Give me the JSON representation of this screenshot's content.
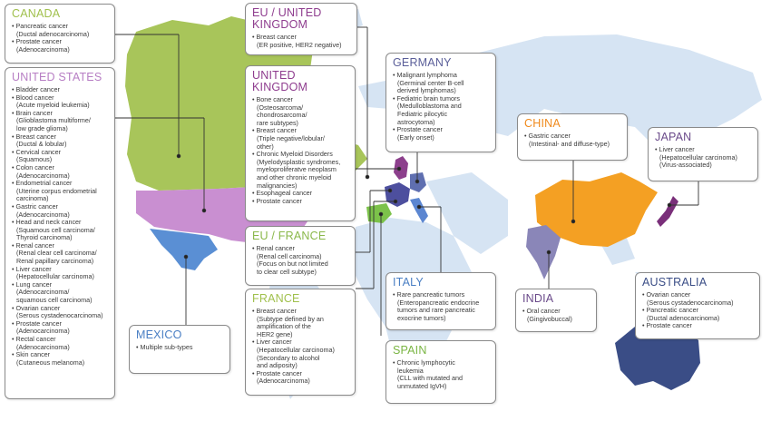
{
  "colors": {
    "ocean_land": "#d6e4f3",
    "canada": "#a8c55a",
    "usa": "#c98fd1",
    "mexico": "#5a8fd4",
    "uk": "#8c3f8c",
    "france": "#4d4f9e",
    "spain": "#7cc24a",
    "germany": "#5f6fb0",
    "italy": "#5b86d1",
    "china": "#f4a023",
    "india": "#8a86b8",
    "japan": "#7a2f7a",
    "australia": "#3a4d86",
    "title_canada": "#a0c04c",
    "title_usa": "#b77ec4",
    "title_uk": "#8e3c8e",
    "title_eu_france": "#8ab84a",
    "title_france": "#a0c04c",
    "title_germany": "#5a5e99",
    "title_mexico": "#4a7fc4",
    "title_italy": "#4a7fc4",
    "title_spain": "#7ab543",
    "title_china": "#f08a1c",
    "title_japan": "#6a4a8a",
    "title_india": "#6a4a8a",
    "title_australia": "#3a4d86"
  },
  "boxes": {
    "canada": {
      "title": "CANADA",
      "items": [
        {
          "title": "Pancreatic cancer",
          "sub": [
            "(Ductal adenocarcinoma)"
          ]
        },
        {
          "title": "Prostate cancer",
          "sub": [
            "(Adenocarcinoma)"
          ]
        }
      ]
    },
    "usa": {
      "title": "UNITED STATES",
      "items": [
        {
          "title": "Bladder cancer",
          "sub": []
        },
        {
          "title": "Blood cancer",
          "sub": [
            "(Acute myeloid leukemia)"
          ]
        },
        {
          "title": "Brain cancer",
          "sub": [
            "(Glioblastoma multiforme/",
            "low grade glioma)"
          ]
        },
        {
          "title": "Breast cancer",
          "sub": [
            "(Ductal & lobular)"
          ]
        },
        {
          "title": "Cervical cancer",
          "sub": [
            "(Squamous)"
          ]
        },
        {
          "title": "Colon cancer",
          "sub": [
            "(Adenocarcinoma)"
          ]
        },
        {
          "title": "Endometrial cancer",
          "sub": [
            "(Uterine corpus endometrial",
            "carcinoma)"
          ]
        },
        {
          "title": "Gastric cancer",
          "sub": [
            "(Adenocarcinoma)"
          ]
        },
        {
          "title": "Head and neck cancer",
          "sub": [
            "(Squamous cell carcinoma/",
            "Thyroid carcinoma)"
          ]
        },
        {
          "title": "Renal cancer",
          "sub": [
            "(Renal clear cell carcinoma/",
            "Renal papillary carcinoma)"
          ]
        },
        {
          "title": "Liver cancer",
          "sub": [
            "(Hepatocellular carcinoma)"
          ]
        },
        {
          "title": "Lung cancer",
          "sub": [
            "(Adenocarcinoma/",
            "squamous cell carcinoma)"
          ]
        },
        {
          "title": "Ovarian cancer",
          "sub": [
            "(Serous cystadenocarcinoma)"
          ]
        },
        {
          "title": "Prostate cancer",
          "sub": [
            "(Adenocarcinoma)"
          ]
        },
        {
          "title": "Rectal cancer",
          "sub": [
            "(Adenocarcinoma)"
          ]
        },
        {
          "title": "Skin cancer",
          "sub": [
            "(Cutaneous melanoma)"
          ]
        }
      ]
    },
    "mexico": {
      "title": "MEXICO",
      "items": [
        {
          "title": "Multiple sub-types",
          "sub": []
        }
      ]
    },
    "eu_uk": {
      "title": "EU / UNITED KINGDOM",
      "items": [
        {
          "title": "Breast cancer",
          "sub": [
            "(ER positive, HER2 negative)"
          ]
        }
      ]
    },
    "uk": {
      "title": "UNITED KINGDOM",
      "items": [
        {
          "title": "Bone cancer",
          "sub": [
            "(Osteosarcoma/",
            "chondrosarcoma/",
            "rare subtypes)"
          ]
        },
        {
          "title": "Breast cancer",
          "sub": [
            "(Triple negative/lobular/",
            "other)"
          ]
        },
        {
          "title": "Chronic Myeloid Disorders",
          "sub": [
            "(Myelodysplastic syndromes,",
            "myeloproliferatve neoplasm",
            "and other chronic myeloid",
            "malignancies)"
          ]
        },
        {
          "title": "Esophageal cancer",
          "sub": []
        },
        {
          "title": "Prostate cancer",
          "sub": []
        }
      ]
    },
    "eu_france": {
      "title": "EU / FRANCE",
      "items": [
        {
          "title": "Renal cancer",
          "sub": [
            "(Renal cell carcinoma)",
            "(Focus on but not limited",
            "to clear cell subtype)"
          ]
        }
      ]
    },
    "france": {
      "title": "FRANCE",
      "items": [
        {
          "title": "Breast cancer",
          "sub": [
            "(Subtype defined by an",
            "amplification of the",
            "HER2 gene)"
          ]
        },
        {
          "title": "Liver cancer",
          "sub": [
            "(Hepatocellular carcinoma)",
            "(Secondary to alcohol",
            "and adiposity)"
          ]
        },
        {
          "title": "Prostate cancer",
          "sub": [
            "(Adenocarcinoma)"
          ]
        }
      ]
    },
    "germany": {
      "title": "GERMANY",
      "items": [
        {
          "title": "Malignant lymphoma",
          "sub": [
            "(Germinal center B-cell",
            "derived lymphomas)"
          ]
        },
        {
          "title": "Fediatric brain tumors",
          "sub": [
            "(Medulloblastoma and",
            "Fediatric pilocytic",
            "astrocytoma)"
          ]
        },
        {
          "title": "Prostate cancer",
          "sub": [
            "(Early onset)"
          ]
        }
      ]
    },
    "italy": {
      "title": "ITALY",
      "items": [
        {
          "title": "Rare pancreatic tumors",
          "sub": [
            "(Enteropancreatic endocrine",
            "tumors and rare pancreatic",
            "exocrine tumors)"
          ]
        }
      ]
    },
    "spain": {
      "title": "SPAIN",
      "items": [
        {
          "title": "Chronic lymphocytic",
          "sub": [
            "leukemia",
            "(CLL with mutated and",
            "unmutated IgVH)"
          ]
        }
      ]
    },
    "china": {
      "title": "CHINA",
      "items": [
        {
          "title": "Gastric cancer",
          "sub": [
            "(Intestinal- and diffuse-type)"
          ]
        }
      ]
    },
    "japan": {
      "title": "JAPAN",
      "items": [
        {
          "title": "Liver cancer",
          "sub": [
            "(Hepatocellular carcinoma)",
            "(Virus-associated)"
          ]
        }
      ]
    },
    "india": {
      "title": "INDIA",
      "items": [
        {
          "title": "Oral cancer",
          "sub": [
            "(Gingivobuccal)"
          ]
        }
      ]
    },
    "australia": {
      "title": "AUSTRALIA",
      "items": [
        {
          "title": "Ovarian cancer",
          "sub": [
            "(Serous cystadenocarcinoma)"
          ]
        },
        {
          "title": "Pancreatic cancer",
          "sub": [
            "(Ductal adenocarcinoma)"
          ]
        },
        {
          "title": "Prostate cancer",
          "sub": []
        }
      ]
    }
  }
}
